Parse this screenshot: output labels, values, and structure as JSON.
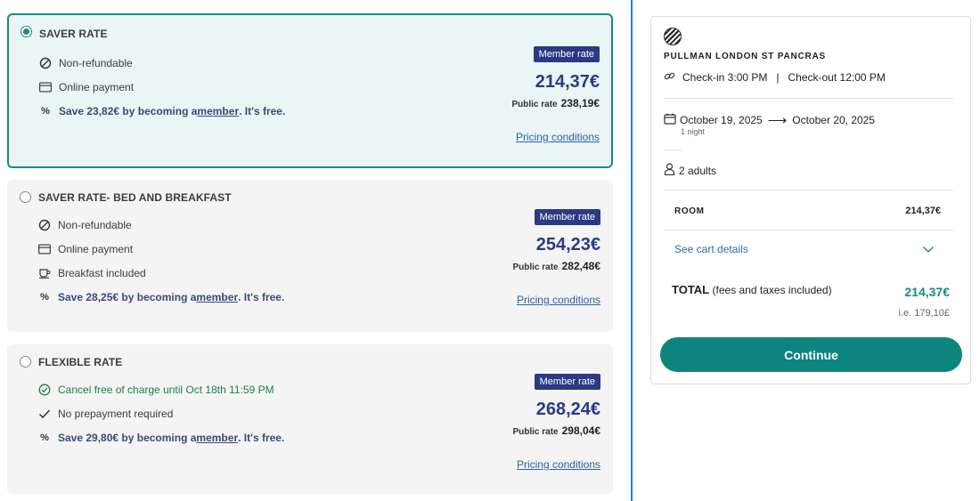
{
  "rates": [
    {
      "title": "SAVER RATE",
      "selected": true,
      "features": [
        {
          "icon": "ban-icon",
          "text": "Non-refundable"
        },
        {
          "icon": "credit-card-icon",
          "text": "Online payment"
        }
      ],
      "promo": {
        "before": "Save 23,82€ by becoming a ",
        "link": "member",
        "after": ". It's free."
      },
      "badge": "Member rate",
      "member_price": "214,37€",
      "public_label": "Public rate",
      "public_price": "238,19€",
      "pricing_link": "Pricing conditions"
    },
    {
      "title": "SAVER RATE- BED AND BREAKFAST",
      "selected": false,
      "features": [
        {
          "icon": "ban-icon",
          "text": "Non-refundable"
        },
        {
          "icon": "credit-card-icon",
          "text": "Online payment"
        },
        {
          "icon": "coffee-cup-icon",
          "text": "Breakfast included"
        }
      ],
      "promo": {
        "before": "Save 28,25€ by becoming a ",
        "link": "member",
        "after": ". It's free."
      },
      "badge": "Member rate",
      "member_price": "254,23€",
      "public_label": "Public rate",
      "public_price": "282,48€",
      "pricing_link": "Pricing conditions"
    },
    {
      "title": "FLEXIBLE RATE",
      "selected": false,
      "features": [
        {
          "icon": "check-circle-icon",
          "text": "Cancel free of charge until Oct 18th 11:59 PM",
          "color": "#1d7f44"
        },
        {
          "icon": "check-icon",
          "text": "No prepayment required"
        }
      ],
      "promo": {
        "before": "Save 29,80€ by becoming a ",
        "link": "member",
        "after": ". It's free."
      },
      "badge": "Member rate",
      "member_price": "268,24€",
      "public_label": "Public rate",
      "public_price": "298,04€",
      "pricing_link": "Pricing conditions"
    }
  ],
  "summary": {
    "hotel_name": "PULLMAN LONDON ST PANCRAS",
    "checkin": "Check-in 3:00 PM",
    "checkout": "Check-out 12:00 PM",
    "separator": "|",
    "date_from": "October 19, 2025",
    "date_to": "October 20, 2025",
    "nights": "1 night",
    "guests": "2 adults",
    "room_label": "ROOM",
    "room_price": "214,37€",
    "cart_link": "See cart details",
    "total_label": "TOTAL",
    "total_sub": "(fees and taxes included)",
    "total_price": "214,37€",
    "total_gbp": "i.e. 179,10£",
    "continue_label": "Continue"
  },
  "colors": {
    "accent": "#0e847f",
    "member_blue": "#2b3a85",
    "link_blue": "#2c5fa8",
    "green_text": "#1d7f44",
    "divider_blue": "#2a7fd4"
  }
}
